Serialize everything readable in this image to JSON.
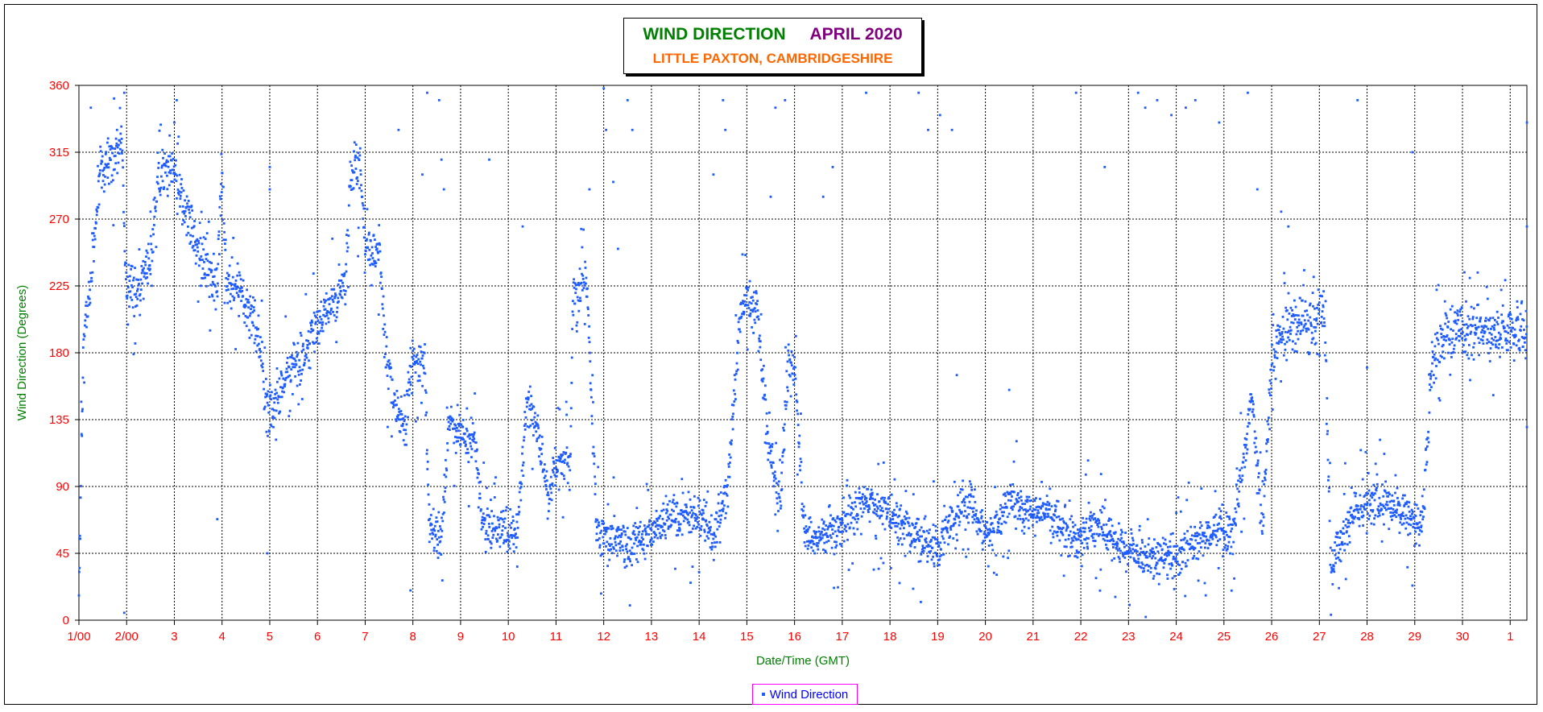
{
  "chart_data": {
    "type": "scatter",
    "title": "WIND DIRECTION",
    "title_date": "APRIL 2020",
    "subtitle": "LITTLE PAXTON, CAMBRIDGESHIRE",
    "xlabel": "Date/Time (GMT)",
    "ylabel": "Wind Direction (Degrees)",
    "ylim": [
      0,
      360
    ],
    "yticks": [
      "0",
      "45",
      "90",
      "135",
      "180",
      "225",
      "270",
      "315",
      "360"
    ],
    "xlim": [
      1,
      31.35
    ],
    "xtick_labels": [
      "1/00",
      "2/00",
      "3",
      "4",
      "5",
      "6",
      "7",
      "8",
      "9",
      "10",
      "11",
      "12",
      "13",
      "14",
      "15",
      "16",
      "17",
      "18",
      "19",
      "20",
      "21",
      "22",
      "23",
      "24",
      "25",
      "26",
      "27",
      "28",
      "29",
      "30",
      "1"
    ],
    "grid": true,
    "legend_position": "bottom-center",
    "series": [
      {
        "name": "Wind Direction",
        "color": "#1f5cff",
        "marker": "dot",
        "profile": [
          [
            1.0,
            20
          ],
          [
            1.1,
            190
          ],
          [
            1.25,
            230
          ],
          [
            1.45,
            305
          ],
          [
            1.75,
            310
          ],
          [
            1.9,
            320
          ],
          [
            2.0,
            220
          ],
          [
            2.3,
            225
          ],
          [
            2.5,
            250
          ],
          [
            2.65,
            295
          ],
          [
            2.8,
            310
          ],
          [
            3.0,
            300
          ],
          [
            3.3,
            270
          ],
          [
            3.6,
            240
          ],
          [
            3.9,
            225
          ],
          [
            4.0,
            300
          ],
          [
            4.1,
            225
          ],
          [
            4.3,
            225
          ],
          [
            4.5,
            210
          ],
          [
            4.75,
            195
          ],
          [
            4.95,
            140
          ],
          [
            5.2,
            150
          ],
          [
            5.5,
            175
          ],
          [
            5.75,
            175
          ],
          [
            6.0,
            200
          ],
          [
            6.3,
            215
          ],
          [
            6.6,
            230
          ],
          [
            6.7,
            305
          ],
          [
            6.9,
            305
          ],
          [
            7.0,
            250
          ],
          [
            7.3,
            250
          ],
          [
            7.4,
            185
          ],
          [
            7.6,
            150
          ],
          [
            7.85,
            130
          ],
          [
            7.95,
            175
          ],
          [
            8.25,
            175
          ],
          [
            8.35,
            60
          ],
          [
            8.6,
            55
          ],
          [
            8.75,
            130
          ],
          [
            9.0,
            130
          ],
          [
            9.1,
            120
          ],
          [
            9.3,
            120
          ],
          [
            9.5,
            60
          ],
          [
            10.0,
            60
          ],
          [
            10.2,
            60
          ],
          [
            10.4,
            150
          ],
          [
            10.6,
            130
          ],
          [
            10.85,
            80
          ],
          [
            10.95,
            103
          ],
          [
            11.3,
            103
          ],
          [
            11.35,
            215
          ],
          [
            11.65,
            230
          ],
          [
            11.85,
            60
          ],
          [
            12.0,
            55
          ],
          [
            12.2,
            55
          ],
          [
            12.5,
            50
          ],
          [
            12.75,
            55
          ],
          [
            13.0,
            62
          ],
          [
            13.5,
            70
          ],
          [
            14.0,
            70
          ],
          [
            14.3,
            55
          ],
          [
            14.6,
            90
          ],
          [
            14.85,
            200
          ],
          [
            15.0,
            220
          ],
          [
            15.25,
            200
          ],
          [
            15.45,
            120
          ],
          [
            15.7,
            80
          ],
          [
            15.85,
            171
          ],
          [
            16.0,
            171
          ],
          [
            16.2,
            60
          ],
          [
            16.5,
            55
          ],
          [
            16.8,
            60
          ],
          [
            17.0,
            65
          ],
          [
            17.5,
            80
          ],
          [
            18.0,
            75
          ],
          [
            18.3,
            60
          ],
          [
            18.6,
            55
          ],
          [
            19.0,
            50
          ],
          [
            19.4,
            70
          ],
          [
            19.7,
            80
          ],
          [
            20.0,
            55
          ],
          [
            20.5,
            80
          ],
          [
            20.9,
            70
          ],
          [
            21.3,
            75
          ],
          [
            21.6,
            65
          ],
          [
            21.9,
            55
          ],
          [
            22.2,
            65
          ],
          [
            22.5,
            60
          ],
          [
            22.9,
            50
          ],
          [
            23.3,
            40
          ],
          [
            23.7,
            45
          ],
          [
            24.0,
            40
          ],
          [
            24.4,
            55
          ],
          [
            24.8,
            60
          ],
          [
            25.2,
            60
          ],
          [
            25.6,
            150
          ],
          [
            25.8,
            60
          ],
          [
            26.0,
            175
          ],
          [
            26.3,
            200
          ],
          [
            26.7,
            200
          ],
          [
            26.95,
            195
          ],
          [
            27.0,
            209
          ],
          [
            27.1,
            209
          ],
          [
            27.25,
            30
          ],
          [
            27.4,
            50
          ],
          [
            27.7,
            75
          ],
          [
            28.0,
            75
          ],
          [
            28.3,
            80
          ],
          [
            28.6,
            75
          ],
          [
            28.9,
            70
          ],
          [
            29.1,
            60
          ],
          [
            29.2,
            80
          ],
          [
            29.35,
            175
          ],
          [
            29.6,
            190
          ],
          [
            30.0,
            195
          ],
          [
            30.5,
            195
          ],
          [
            31.0,
            195
          ],
          [
            31.35,
            195
          ]
        ],
        "outlier_points": [
          [
            1.25,
            345
          ],
          [
            1.95,
            355
          ],
          [
            1.95,
            5
          ],
          [
            2.5,
            275
          ],
          [
            3.0,
            335
          ],
          [
            3.05,
            350
          ],
          [
            3.9,
            68
          ],
          [
            4.95,
            45
          ],
          [
            5.0,
            305
          ],
          [
            5.0,
            290
          ],
          [
            6.85,
            245
          ],
          [
            7.7,
            330
          ],
          [
            7.95,
            20
          ],
          [
            8.2,
            300
          ],
          [
            8.3,
            355
          ],
          [
            8.55,
            350
          ],
          [
            8.6,
            310
          ],
          [
            8.65,
            290
          ],
          [
            9.6,
            310
          ],
          [
            10.3,
            265
          ],
          [
            11.7,
            290
          ],
          [
            12.0,
            358
          ],
          [
            12.05,
            330
          ],
          [
            12.2,
            295
          ],
          [
            12.3,
            250
          ],
          [
            12.5,
            350
          ],
          [
            12.55,
            10
          ],
          [
            12.6,
            330
          ],
          [
            14.3,
            300
          ],
          [
            14.5,
            350
          ],
          [
            14.55,
            330
          ],
          [
            15.5,
            285
          ],
          [
            15.6,
            345
          ],
          [
            15.8,
            350
          ],
          [
            16.6,
            285
          ],
          [
            16.8,
            305
          ],
          [
            17.5,
            355
          ],
          [
            18.2,
            25
          ],
          [
            18.6,
            355
          ],
          [
            18.8,
            330
          ],
          [
            19.05,
            340
          ],
          [
            19.3,
            330
          ],
          [
            19.4,
            165
          ],
          [
            20.5,
            155
          ],
          [
            21.9,
            355
          ],
          [
            22.5,
            305
          ],
          [
            23.2,
            355
          ],
          [
            23.35,
            345
          ],
          [
            23.6,
            350
          ],
          [
            23.9,
            340
          ],
          [
            24.2,
            345
          ],
          [
            24.4,
            350
          ],
          [
            24.9,
            335
          ],
          [
            25.5,
            355
          ],
          [
            25.7,
            290
          ],
          [
            26.2,
            275
          ],
          [
            26.35,
            265
          ],
          [
            27.8,
            350
          ],
          [
            28.0,
            170
          ],
          [
            28.95,
            315
          ],
          [
            31.35,
            265
          ],
          [
            31.35,
            335
          ],
          [
            31.35,
            130
          ]
        ]
      }
    ]
  }
}
